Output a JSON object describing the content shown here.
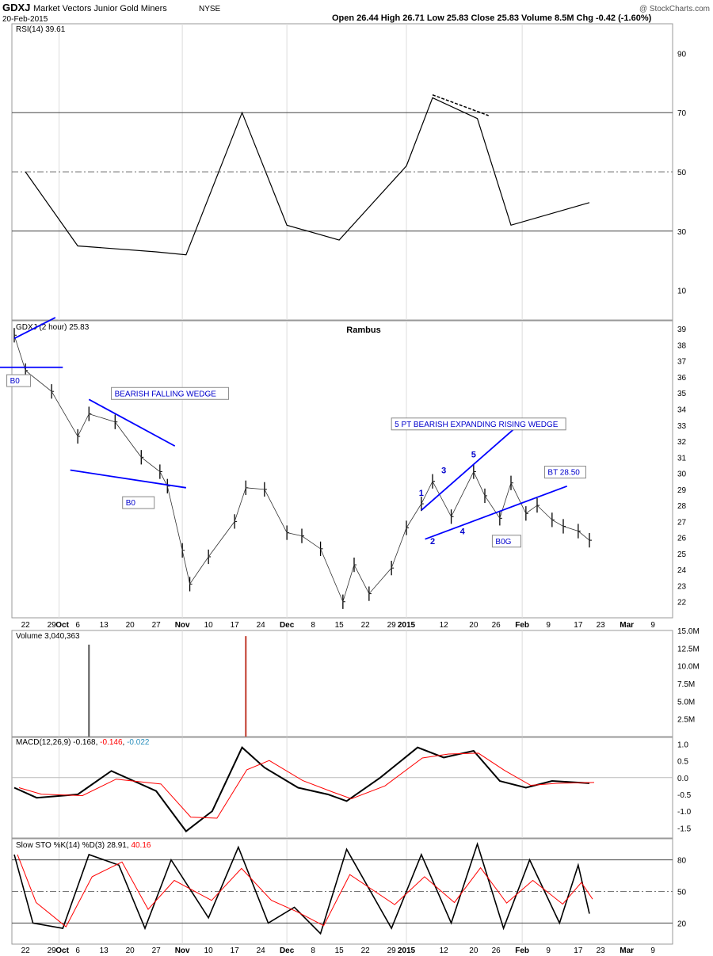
{
  "header": {
    "symbol": "GDXJ",
    "name": "Market Vectors Junior Gold Miners",
    "exchange": "NYSE",
    "date": "20-Feb-2015",
    "quote": "Open 26.44  High 26.71  Low 25.83  Close 25.83  Volume 8.5M  Chg -0.42 (-1.60%)",
    "copyright": "@ StockCharts.com"
  },
  "colors": {
    "price": "#000000",
    "trendline": "#0000ff",
    "annotation": "#0000cc",
    "volume_down": "#c0392b",
    "volume_up": "#555555",
    "macd_hist": "#2a8fbd",
    "signal": "#ff0000",
    "rsi_oversold_fill": "#8b5a5a",
    "rsi_overbought_fill": "#4f7a5f",
    "grid": "#dddddd"
  },
  "x_axis": {
    "labels": [
      "22",
      "29",
      "Oct",
      "6",
      "13",
      "20",
      "27",
      "Nov",
      "10",
      "17",
      "24",
      "Dec",
      "8",
      "15",
      "22",
      "29",
      "2015",
      "12",
      "20",
      "26",
      "Feb",
      "9",
      "17",
      "23",
      "Mar",
      "9"
    ]
  },
  "chart_data": [
    {
      "type": "line",
      "panel": "rsi",
      "label": "RSI(14) 39.61",
      "ylim": [
        0,
        100
      ],
      "y_ticks": [
        10,
        30,
        50,
        70,
        90
      ],
      "levels": [
        30,
        50,
        70
      ],
      "x_dates": [
        "Sep 22",
        "Oct 6",
        "Oct 27",
        "Nov 4",
        "Nov 19",
        "Dec 1",
        "Dec 15",
        "Jan 2",
        "Jan 9",
        "Jan 21",
        "Jan 30",
        "Feb 20"
      ],
      "values": [
        50,
        25,
        23,
        22,
        70,
        32,
        27,
        52,
        75,
        68,
        32,
        39.61
      ],
      "annotations": [
        {
          "type": "dashed-line",
          "from_value": 76,
          "to_value": 69
        }
      ]
    },
    {
      "type": "bar",
      "panel": "price",
      "label": "GDXJ (2 hour) 25.83",
      "title": "Rambus",
      "ylim": [
        21,
        39.5
      ],
      "y_ticks": [
        22,
        23,
        24,
        25,
        26,
        27,
        28,
        29,
        30,
        31,
        32,
        33,
        34,
        35,
        36,
        37,
        38,
        39
      ],
      "x_dates": [
        "Sep 19",
        "Sep 22",
        "Sep 29",
        "Oct 6",
        "Oct 9",
        "Oct 16",
        "Oct 23",
        "Oct 28",
        "Oct 30",
        "Nov 3",
        "Nov 5",
        "Nov 10",
        "Nov 17",
        "Nov 20",
        "Nov 25",
        "Dec 1",
        "Dec 5",
        "Dec 10",
        "Dec 16",
        "Dec 19",
        "Dec 23",
        "Dec 29",
        "Jan 2",
        "Jan 6",
        "Jan 9",
        "Jan 14",
        "Jan 20",
        "Jan 23",
        "Jan 27",
        "Jan 30",
        "Feb 3",
        "Feb 6",
        "Feb 10",
        "Feb 13",
        "Feb 17",
        "Feb 20"
      ],
      "values": [
        38.6,
        36.4,
        35.1,
        32.3,
        33.7,
        33.2,
        31.0,
        30.1,
        29.2,
        25.2,
        23.1,
        24.8,
        27.0,
        29.1,
        29.0,
        26.3,
        26.1,
        25.3,
        22.0,
        24.3,
        22.5,
        24.1,
        26.6,
        28.1,
        29.5,
        27.3,
        30.1,
        28.6,
        27.2,
        29.4,
        27.5,
        28.0,
        27.1,
        26.7,
        26.4,
        25.83
      ],
      "annotations": [
        {
          "text": "BEARISH FALLING WEDGE"
        },
        {
          "text": "B0"
        },
        {
          "text": "B0"
        },
        {
          "text": "5 PT BEARISH EXPANDING RISING WEDGE"
        },
        {
          "text": "1"
        },
        {
          "text": "2"
        },
        {
          "text": "3"
        },
        {
          "text": "4"
        },
        {
          "text": "5"
        },
        {
          "text": "B0G"
        },
        {
          "text": "BT 28.50"
        }
      ]
    },
    {
      "type": "bar",
      "panel": "volume",
      "label": "Volume 3,040,363",
      "ylim": [
        0,
        15000000
      ],
      "y_ticks": [
        "2.5M",
        "5.0M",
        "7.5M",
        "10.0M",
        "12.5M",
        "15.0M"
      ],
      "notable_spikes": [
        {
          "date": "Oct 9",
          "value": 13000000
        },
        {
          "date": "Nov 20",
          "value": 14200000
        }
      ]
    },
    {
      "type": "line",
      "panel": "macd",
      "label_prefix": "MACD(12,26,9)",
      "macd_value": "-0.168",
      "signal_value": "-0.146",
      "histogram_value": "-0.022",
      "ylim": [
        -1.8,
        1.2
      ],
      "y_ticks": [
        -1.5,
        -1.0,
        -0.5,
        0.0,
        0.5,
        1.0
      ],
      "x_dates": [
        "Sep 19",
        "Sep 25",
        "Oct 6",
        "Oct 15",
        "Oct 27",
        "Nov 4",
        "Nov 11",
        "Nov 19",
        "Nov 25",
        "Dec 4",
        "Dec 12",
        "Dec 17",
        "Dec 26",
        "Jan 5",
        "Jan 12",
        "Jan 20",
        "Jan 27",
        "Feb 3",
        "Feb 10",
        "Feb 20"
      ],
      "values": [
        -0.3,
        -0.6,
        -0.5,
        0.2,
        -0.4,
        -1.6,
        -1.0,
        0.9,
        0.3,
        -0.3,
        -0.5,
        -0.7,
        0.0,
        0.9,
        0.6,
        0.8,
        -0.1,
        -0.3,
        -0.1,
        -0.168
      ]
    },
    {
      "type": "line",
      "panel": "stochastic",
      "label_prefix": "Slow STO %K(14) %D(3)",
      "k_value": "28.91",
      "d_value": "40.16",
      "ylim": [
        0,
        100
      ],
      "y_ticks": [
        20,
        50,
        80
      ],
      "levels": [
        20,
        50,
        80
      ],
      "x_dates": [
        "Sep 19",
        "Sep 24",
        "Oct 2",
        "Oct 9",
        "Oct 17",
        "Oct 24",
        "Oct 31",
        "Nov 10",
        "Nov 18",
        "Nov 26",
        "Dec 3",
        "Dec 10",
        "Dec 17",
        "Dec 29",
        "Jan 6",
        "Jan 14",
        "Jan 21",
        "Jan 28",
        "Feb 4",
        "Feb 12",
        "Feb 17",
        "Feb 20"
      ],
      "values": [
        85,
        20,
        15,
        85,
        75,
        15,
        80,
        25,
        92,
        20,
        35,
        10,
        90,
        15,
        85,
        20,
        95,
        15,
        80,
        20,
        75,
        28.91
      ]
    }
  ]
}
